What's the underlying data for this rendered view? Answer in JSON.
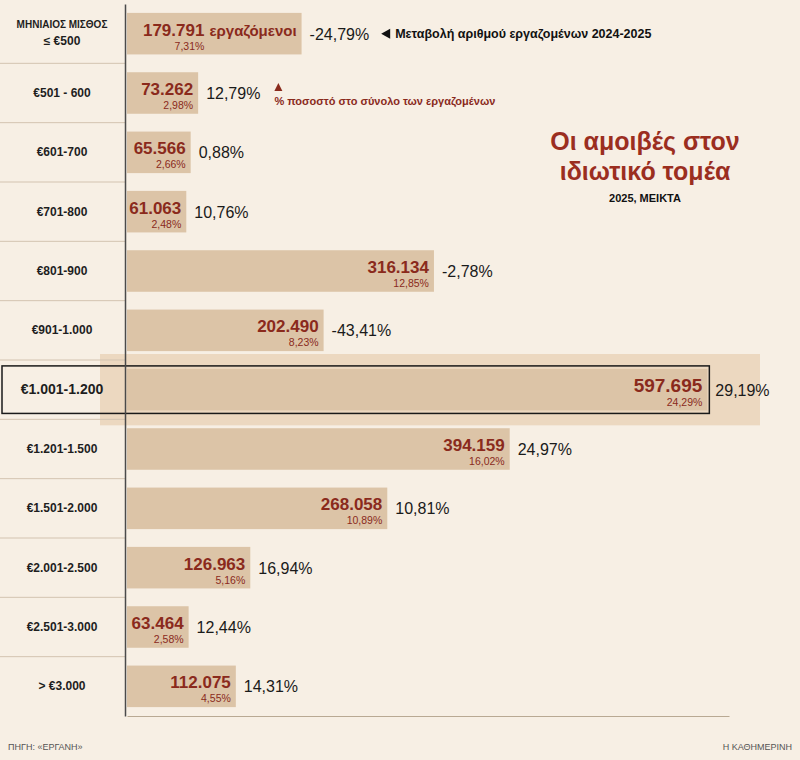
{
  "chart_data": {
    "type": "bar",
    "orientation": "horizontal",
    "title": "Οι αμοιβές στον ιδιωτικό τομέα",
    "subtitle": "2025, ΜΕΙΚΤΑ",
    "y_label": "ΜΗΝΙΑΙΟΣ ΜΙΣΘΟΣ",
    "categories": [
      "≤ €500",
      "€501 - 600",
      "€601-700",
      "€701-800",
      "€801-900",
      "€901-1.000",
      "€1.001-1.200",
      "€1.201-1.500",
      "€1.501-2.000",
      "€2.001-2.500",
      "€2.501-3.000",
      "> €3.000"
    ],
    "values": [
      179791,
      73262,
      65566,
      61063,
      316134,
      202490,
      597695,
      394159,
      268058,
      126963,
      63464,
      112075
    ],
    "value_labels": [
      "179.791",
      "73.262",
      "65.566",
      "61.063",
      "316.134",
      "202.490",
      "597.695",
      "394.159",
      "268.058",
      "126.963",
      "63.464",
      "112.075"
    ],
    "shares": [
      7.31,
      2.98,
      2.66,
      2.48,
      12.85,
      8.23,
      24.29,
      16.02,
      10.89,
      5.16,
      2.58,
      4.55
    ],
    "share_labels": [
      "7,31%",
      "2,98%",
      "2,66%",
      "2,48%",
      "12,85%",
      "8,23%",
      "24,29%",
      "16,02%",
      "10,89%",
      "5,16%",
      "2,58%",
      "4,55%"
    ],
    "changes": [
      -24.79,
      12.79,
      0.88,
      10.76,
      -2.78,
      -43.41,
      29.19,
      24.97,
      10.81,
      16.94,
      12.44,
      14.31
    ],
    "change_labels": [
      "-24,79%",
      "12,79%",
      "0,88%",
      "10,76%",
      "-2,78%",
      "-43,41%",
      "29,19%",
      "24,97%",
      "10,81%",
      "16,94%",
      "12,44%",
      "14,31%"
    ],
    "color": "#dcc4a7",
    "data_labels": true,
    "tick_labels": "y",
    "xlim": [
      0,
      620000
    ],
    "annotations": {
      "unit_label": "εργαζόμενοι",
      "change_note": "Μεταβολή αριθμού εργαζομένων 2024-2025",
      "share_note": "% ποσοστό στο σύνολο των εργαζομένων"
    },
    "source": "ΠΗΓΗ: «ΕΡΓΑΝΗ»",
    "credit": "Η ΚΑΘΗΜΕΡΙΝΗ"
  }
}
